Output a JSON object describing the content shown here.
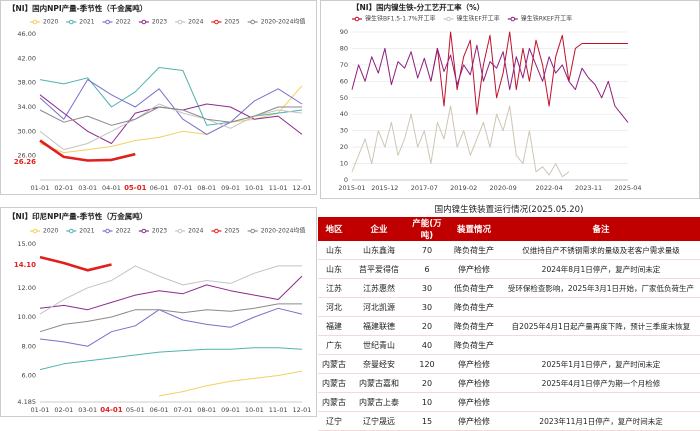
{
  "chart_data": [
    {
      "type": "line",
      "title": "【NI】国内NPI产量-季节性（千金属吨）",
      "categories": [
        "01-01",
        "02-01",
        "03-01",
        "04-01",
        "05-01",
        "06-01",
        "07-01",
        "08-01",
        "09-01",
        "10-01",
        "11-01",
        "12-01"
      ],
      "series": [
        {
          "name": "2020",
          "color": "#f2d060",
          "values": [
            28.0,
            26.5,
            27.0,
            27.5,
            28.5,
            29.0,
            30.0,
            29.5,
            31.5,
            32.0,
            33.0,
            37.5
          ]
        },
        {
          "name": "2021",
          "color": "#4fb3b0",
          "values": [
            38.5,
            37.8,
            38.8,
            34.0,
            36.5,
            40.5,
            40.0,
            31.0,
            31.5,
            32.5,
            33.0,
            33.5
          ]
        },
        {
          "name": "2022",
          "color": "#7a6fd0",
          "values": [
            35.5,
            32.0,
            38.5,
            36.0,
            34.0,
            37.0,
            32.0,
            29.5,
            31.5,
            35.0,
            37.0,
            34.5
          ]
        },
        {
          "name": "2023",
          "color": "#8e2a8e",
          "values": [
            36.0,
            33.0,
            30.0,
            28.0,
            33.0,
            34.0,
            33.5,
            34.5,
            34.0,
            32.0,
            32.5,
            29.5
          ]
        },
        {
          "name": "2024",
          "color": "#c4c4c4",
          "values": [
            30.0,
            27.0,
            28.0,
            30.0,
            32.0,
            34.5,
            33.0,
            32.0,
            30.5,
            32.5,
            33.5,
            33.0
          ]
        },
        {
          "name": "2025",
          "color": "#e0201c",
          "values": [
            28.5,
            25.8,
            25.2,
            25.3,
            26.26,
            null,
            null,
            null,
            null,
            null,
            null,
            null
          ],
          "value_labels": [
            null,
            null,
            null,
            null,
            "26.26",
            null,
            null,
            null,
            null,
            null,
            null,
            null
          ]
        },
        {
          "name": "2020-2024均值",
          "color": "#8a8a8a",
          "values": [
            33.5,
            31.5,
            32.5,
            31.0,
            32.0,
            34.0,
            33.5,
            32.0,
            31.5,
            32.5,
            34.0,
            34.0
          ]
        }
      ],
      "ylim": [
        22,
        46
      ],
      "yticks": [
        {
          "value": 26,
          "label": "26.00"
        },
        {
          "value": 30,
          "label": "30.00"
        },
        {
          "value": 34,
          "label": "34.00"
        },
        {
          "value": 38,
          "label": "38.00"
        },
        {
          "value": 42,
          "label": "42.00"
        },
        {
          "value": 46,
          "label": "46.00"
        }
      ],
      "grid": false,
      "legend": "top"
    },
    {
      "type": "line",
      "title": "【NI】印尼NPI产量-季节性（万金属吨）",
      "categories": [
        "01-01",
        "02-01",
        "03-01",
        "04-01",
        "05-01",
        "06-01",
        "07-01",
        "08-01",
        "09-01",
        "10-01",
        "11-01",
        "12-01"
      ],
      "series": [
        {
          "name": "2020",
          "color": "#f2d060",
          "values": [
            null,
            null,
            null,
            null,
            null,
            4.6,
            4.9,
            5.3,
            5.6,
            5.8,
            6.0,
            6.3
          ]
        },
        {
          "name": "2021",
          "color": "#4fb3b0",
          "values": [
            6.4,
            6.8,
            7.0,
            7.2,
            7.4,
            7.6,
            7.7,
            7.8,
            7.8,
            7.9,
            7.9,
            7.8
          ]
        },
        {
          "name": "2022",
          "color": "#7a6fd0",
          "values": [
            8.5,
            8.3,
            8.0,
            9.0,
            9.4,
            10.5,
            9.8,
            9.5,
            9.3,
            10.0,
            10.6,
            10.2
          ]
        },
        {
          "name": "2023",
          "color": "#8e2a8e",
          "values": [
            10.6,
            10.8,
            10.5,
            11.0,
            11.5,
            11.8,
            11.6,
            12.2,
            11.8,
            11.5,
            11.2,
            12.8
          ]
        },
        {
          "name": "2024",
          "color": "#c4c4c4",
          "values": [
            10.2,
            11.2,
            12.0,
            12.5,
            13.5,
            12.8,
            12.2,
            12.5,
            12.3,
            13.0,
            13.5,
            13.5
          ]
        },
        {
          "name": "2025",
          "color": "#e0201c",
          "values": [
            14.1,
            13.7,
            13.2,
            13.6,
            null,
            null,
            null,
            null,
            null,
            null,
            null,
            null
          ],
          "value_labels": [
            "14.10",
            null,
            null,
            null,
            null,
            null,
            null,
            null,
            null,
            null,
            null,
            null
          ]
        },
        {
          "name": "2020-2024均值",
          "color": "#8a8a8a",
          "values": [
            9.0,
            9.5,
            9.7,
            10.0,
            10.5,
            10.5,
            10.3,
            10.5,
            10.4,
            10.6,
            10.9,
            10.9
          ]
        }
      ],
      "ylim": [
        4.185,
        15
      ],
      "yticks": [
        4.185,
        {
          "value": 6,
          "label": "6.00"
        },
        {
          "value": 8,
          "label": "8.00"
        },
        {
          "value": 10,
          "label": "10.00"
        },
        {
          "value": 12,
          "label": "12.00"
        },
        {
          "value": 15,
          "label": "15.00"
        }
      ],
      "grid": false,
      "legend": "top"
    },
    {
      "type": "line",
      "title": "【NI】国内镍生铁-分工艺开工率（%）",
      "categories": [
        "2015-01",
        null,
        null,
        null,
        null,
        "2015-12",
        null,
        null,
        null,
        null,
        null,
        "2017-07",
        null,
        null,
        null,
        null,
        null,
        "2019-02",
        null,
        null,
        null,
        null,
        null,
        "2020-09",
        null,
        null,
        null,
        null,
        null,
        null,
        "2022-04",
        null,
        null,
        null,
        null,
        null,
        "2023-11",
        null,
        null,
        null,
        null,
        null,
        "2025-04"
      ],
      "series": [
        {
          "name": "镍生铁BF1.5-1.7%开工率",
          "color": "#c0102a",
          "values": [
            null,
            null,
            null,
            null,
            null,
            null,
            null,
            null,
            null,
            null,
            null,
            null,
            60,
            80,
            45,
            90,
            55,
            75,
            85,
            40,
            70,
            88,
            50,
            65,
            90,
            55,
            80,
            60,
            85,
            70,
            45,
            75,
            88,
            60,
            80,
            83,
            83,
            83,
            83,
            83,
            83,
            83,
            83
          ]
        },
        {
          "name": "镍生铁EF开工率",
          "color": "#cfc6b4",
          "values": [
            5,
            15,
            25,
            10,
            30,
            20,
            35,
            15,
            25,
            40,
            20,
            30,
            10,
            35,
            25,
            45,
            20,
            30,
            15,
            25,
            35,
            20,
            40,
            30,
            45,
            15,
            10,
            30,
            5,
            8,
            3,
            10,
            2,
            5,
            null,
            null,
            3,
            null,
            null,
            null,
            null,
            null,
            null
          ]
        },
        {
          "name": "镍生铁RKEF开工率",
          "color": "#8e1f7e",
          "values": [
            55,
            70,
            60,
            75,
            65,
            80,
            58,
            72,
            68,
            78,
            62,
            74,
            60,
            80,
            66,
            76,
            58,
            70,
            64,
            82,
            60,
            72,
            68,
            78,
            55,
            75,
            62,
            80,
            70,
            60,
            75,
            65,
            70,
            60,
            55,
            68,
            62,
            58,
            50,
            60,
            45,
            40,
            35
          ]
        }
      ],
      "ylim": [
        0,
        90
      ],
      "yticks": [
        0,
        10,
        20,
        30,
        40,
        50,
        60,
        70,
        80,
        90
      ],
      "grid": true,
      "legend": "top"
    }
  ],
  "table": {
    "title": "国内镍生铁装置运行情况(2025.05.20)",
    "header": [
      "地区",
      "企业",
      "产能(万吨)",
      "装置情况",
      "备注"
    ],
    "rows": [
      [
        "山东",
        "山东鑫海",
        "70",
        "降负荷生产",
        "仅维持自产不锈钢需求的量级及老客户需求量级"
      ],
      [
        "山东",
        "莒平爱得信",
        "6",
        "停产检修",
        "2024年8月1日停产，复产时间未定"
      ],
      [
        "江苏",
        "江苏惠然",
        "30",
        "低负荷生产",
        "受环保检查影响，2025年3月1日开始，厂家低负荷生产"
      ],
      [
        "河北",
        "河北凯源",
        "30",
        "降负荷生产",
        null
      ],
      [
        "福建",
        "福建联德",
        "20",
        "降负荷生产",
        "自2025年4月1日起产量再度下降，预计三季度末恢复"
      ],
      [
        "广东",
        "世纪青山",
        "40",
        "降负荷生产",
        null
      ],
      [
        "内蒙古",
        "奈曼经安",
        "120",
        "停产检修",
        "2025年1月1日停产，复产时间未定"
      ],
      [
        "内蒙古",
        "内蒙古嘉和",
        "20",
        "停产检修",
        "2025年4月1日停产为期一个月检修"
      ],
      [
        "内蒙古",
        "内蒙古上泰",
        "10",
        "停产检修",
        null
      ],
      [
        "辽宁",
        "辽宁晟远",
        "15",
        "停产检修",
        "2023年11月1日停产，复产时间未定"
      ]
    ]
  }
}
